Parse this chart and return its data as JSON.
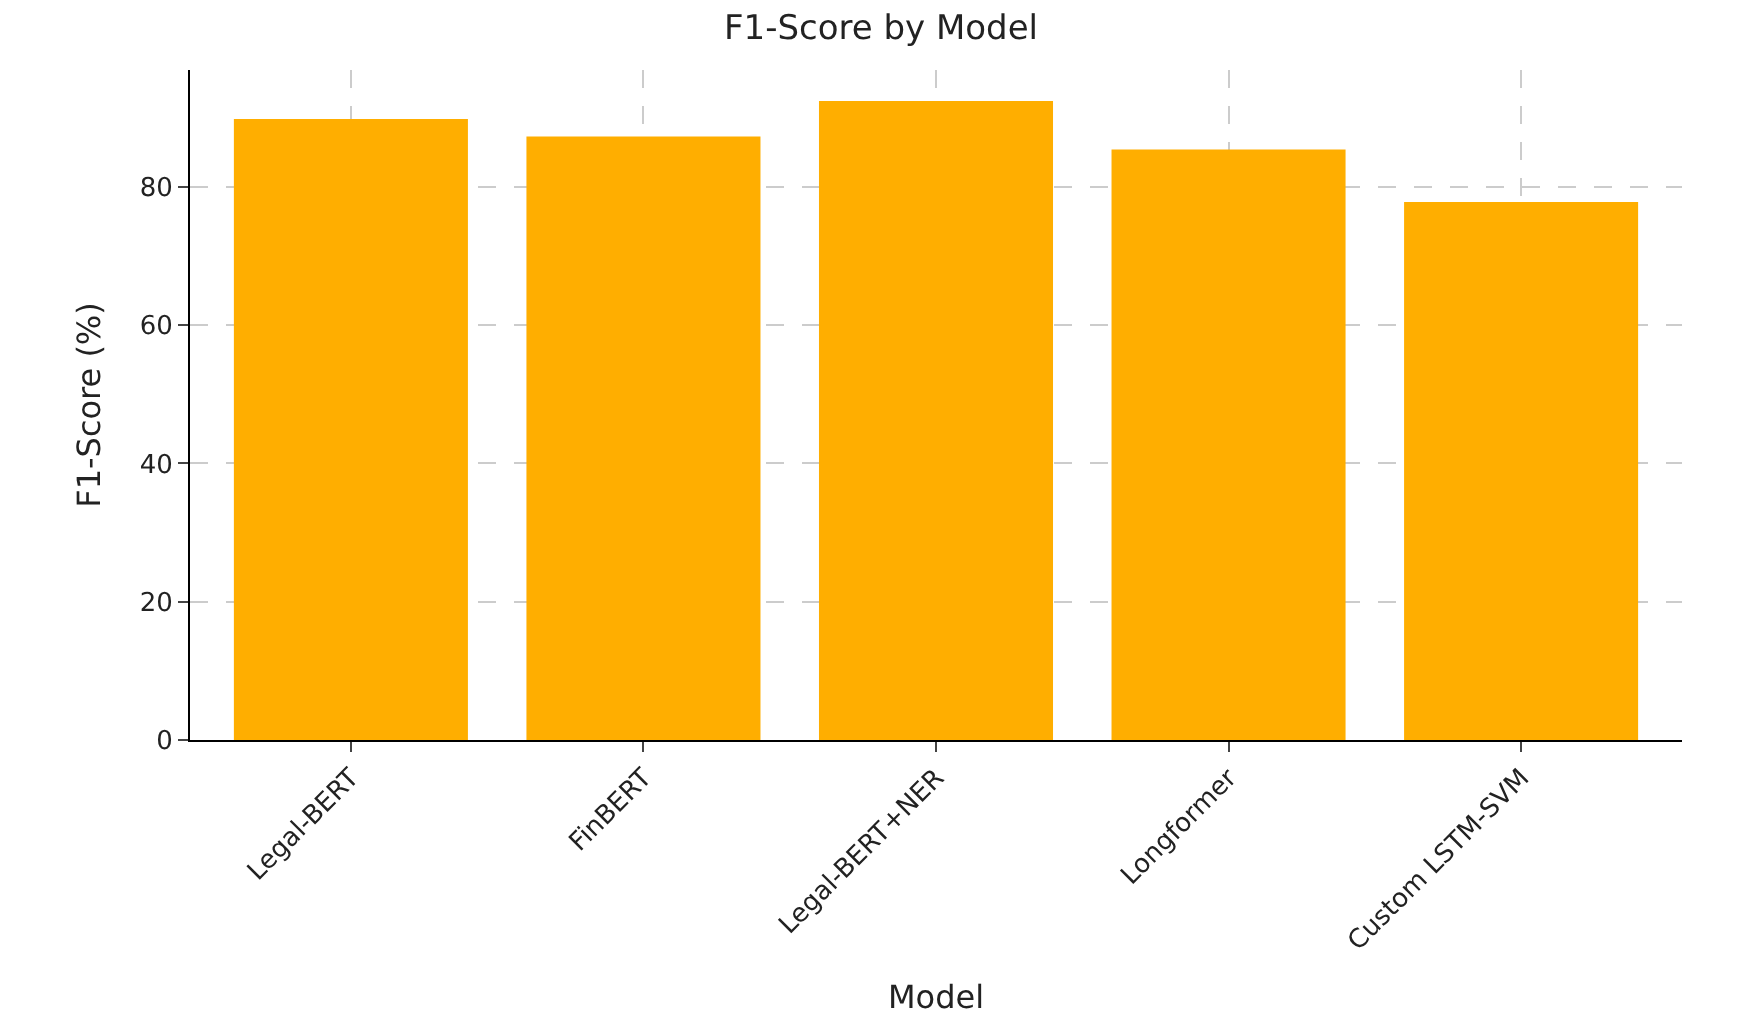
{
  "chart_data": {
    "type": "bar",
    "title": "F1-Score by Model",
    "xlabel": "Model",
    "ylabel": "F1-Score (%)",
    "categories": [
      "Legal-BERT",
      "FinBERT",
      "Legal-BERT+NER",
      "Longformer",
      "Custom LSTM-SVM"
    ],
    "values": [
      89.8,
      87.3,
      92.4,
      85.4,
      77.8
    ],
    "color": "#ffae00",
    "ylim": [
      0,
      96.9
    ],
    "yticks": [
      0,
      20,
      40,
      60,
      80
    ],
    "grid": true
  }
}
